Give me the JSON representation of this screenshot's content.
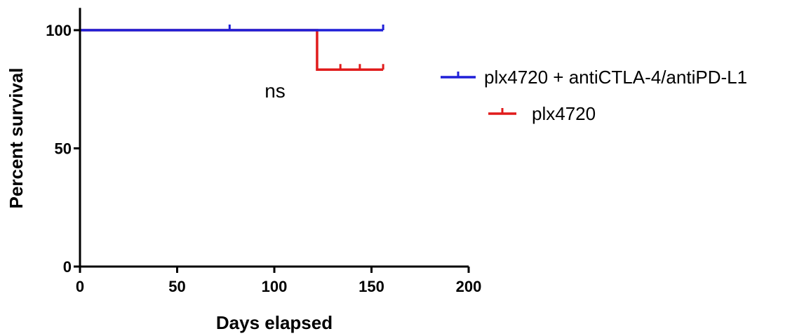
{
  "chart_data": {
    "type": "line",
    "subtype": "kaplan-meier survival step plot",
    "title": "",
    "xlabel": "Days elapsed",
    "ylabel": "Percent survival",
    "xlim": [
      0,
      200
    ],
    "ylim": [
      0,
      110
    ],
    "xticks": [
      0,
      50,
      100,
      150,
      200
    ],
    "yticks": [
      0,
      50,
      100
    ],
    "grid": false,
    "legend_position": "right",
    "annotation": "ns",
    "series": [
      {
        "name": "plx4720 + antiCTLA-4/antiPD-L1",
        "color": "#1f1fd8",
        "steps": [
          [
            0,
            100
          ],
          [
            156,
            100
          ]
        ],
        "censored": [
          [
            77,
            100
          ],
          [
            156,
            100
          ]
        ]
      },
      {
        "name": "plx4720",
        "color": "#e01b1b",
        "steps": [
          [
            0,
            100
          ],
          [
            122,
            100
          ],
          [
            122,
            83.3
          ],
          [
            156,
            83.3
          ]
        ],
        "censored": [
          [
            134,
            83.3
          ],
          [
            144,
            83.3
          ],
          [
            156,
            83.3
          ]
        ]
      }
    ]
  }
}
